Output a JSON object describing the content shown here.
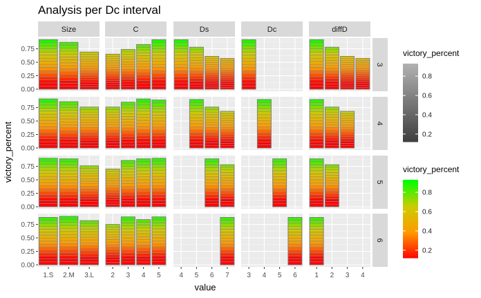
{
  "chart_data": {
    "type": "bar",
    "title": "Analysis per Dc interval",
    "xlabel": "value",
    "ylabel": "victory_percent",
    "ylim": [
      0,
      0.95
    ],
    "y_ticks": [
      "0.00",
      "0.25",
      "0.50",
      "0.75"
    ],
    "y_tick_values": [
      0,
      0.25,
      0.5,
      0.75
    ],
    "grid": true,
    "legend_position": "right",
    "row_labels": [
      "3",
      "4",
      "5",
      "6"
    ],
    "col_labels": [
      "Size",
      "C",
      "Ds",
      "Dc",
      "diffD"
    ],
    "col_categories": [
      [
        "1.S",
        "2.M",
        "3.L"
      ],
      [
        "2",
        "3",
        "4",
        "5"
      ],
      [
        "4",
        "5",
        "6",
        "7"
      ],
      [
        "3",
        "4",
        "5",
        "6"
      ],
      [
        "1",
        "2",
        "3",
        "4"
      ]
    ],
    "panels": [
      [
        [
          0.92,
          0.87,
          0.69
        ],
        [
          0.65,
          0.74,
          0.83,
          0.92
        ],
        [
          0.92,
          0.78,
          0.61,
          0.57
        ],
        [
          0.92,
          null,
          null,
          null
        ],
        [
          0.92,
          0.78,
          0.61,
          0.57
        ]
      ],
      [
        [
          0.91,
          0.86,
          0.76
        ],
        [
          0.76,
          0.85,
          0.91,
          0.89
        ],
        [
          null,
          0.9,
          0.76,
          0.68
        ],
        [
          null,
          0.9,
          null,
          null
        ],
        [
          0.9,
          0.76,
          0.68,
          null
        ]
      ],
      [
        [
          0.9,
          0.89,
          0.76
        ],
        [
          0.7,
          0.86,
          0.89,
          0.9
        ],
        [
          null,
          null,
          0.89,
          0.78
        ],
        [
          null,
          null,
          0.89,
          null
        ],
        [
          0.89,
          0.78,
          null,
          null
        ]
      ],
      [
        [
          0.88,
          0.9,
          0.82
        ],
        [
          0.75,
          0.89,
          0.84,
          0.89
        ],
        [
          null,
          null,
          null,
          0.88
        ],
        [
          null,
          null,
          null,
          0.88
        ],
        [
          0.88,
          null,
          null,
          null
        ]
      ]
    ],
    "legend_grey": {
      "title": "victory_percent",
      "labels": [
        "0.8",
        "0.6",
        "0.4",
        "0.2"
      ],
      "values": [
        0.8,
        0.6,
        0.4,
        0.2
      ],
      "range": [
        0.12,
        0.93
      ],
      "low_color": "#3d3d3d",
      "high_color": "#b0b0b0"
    },
    "legend_color": {
      "title": "victory_percent",
      "labels": [
        "0.8",
        "0.6",
        "0.4",
        "0.2"
      ],
      "values": [
        0.8,
        0.6,
        0.4,
        0.2
      ],
      "range": [
        0.12,
        0.93
      ],
      "colors": [
        "#ff0000",
        "#ff9900",
        "#cccc00",
        "#00ff00"
      ]
    }
  }
}
